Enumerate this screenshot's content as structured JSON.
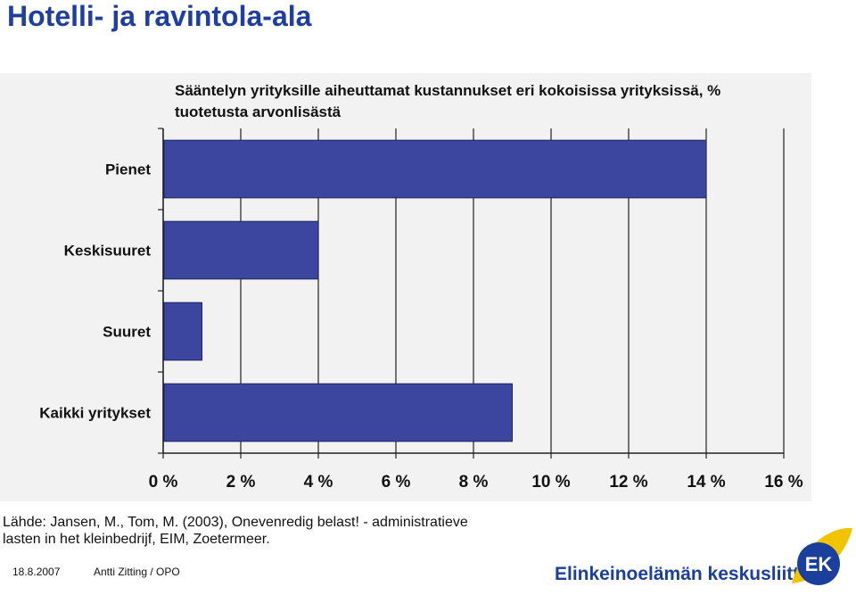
{
  "slide": {
    "title": "Hotelli- ja ravintola-ala",
    "source_line1": "Lähde: Jansen, M., Tom, M. (2003), Onevenredig belast! - administratieve",
    "source_line2": "lasten in het kleinbedrijf, EIM, Zoetermeer.",
    "footer_date": "18.8.2007",
    "footer_author": "Antti Zitting / OPO",
    "org_name": "Elinkeinoelämän keskusliitto",
    "logo_text": "EK"
  },
  "colors": {
    "bar": "#3c469f",
    "title": "#1f3fa0",
    "brand": "#1a3f9c",
    "logo_yellow": "#f2c400"
  },
  "chart_data": {
    "type": "bar",
    "orientation": "horizontal",
    "title_line1": "Sääntelyn yrityksille aiheuttamat kustannukset eri kokoisissa yrityksissä, %",
    "title_line2": "tuotetusta arvonlisästä",
    "categories": [
      "Pienet",
      "Keskisuuret",
      "Suuret",
      "Kaikki yritykset"
    ],
    "values": [
      14,
      4,
      1,
      9
    ],
    "xlim": [
      0,
      16
    ],
    "xticks": [
      0,
      2,
      4,
      6,
      8,
      10,
      12,
      14,
      16
    ],
    "xtick_labels": [
      "0 %",
      "2 %",
      "4 %",
      "6 %",
      "8 %",
      "10 %",
      "12 %",
      "14 %",
      "16 %"
    ],
    "grid": true,
    "legend": "none"
  }
}
